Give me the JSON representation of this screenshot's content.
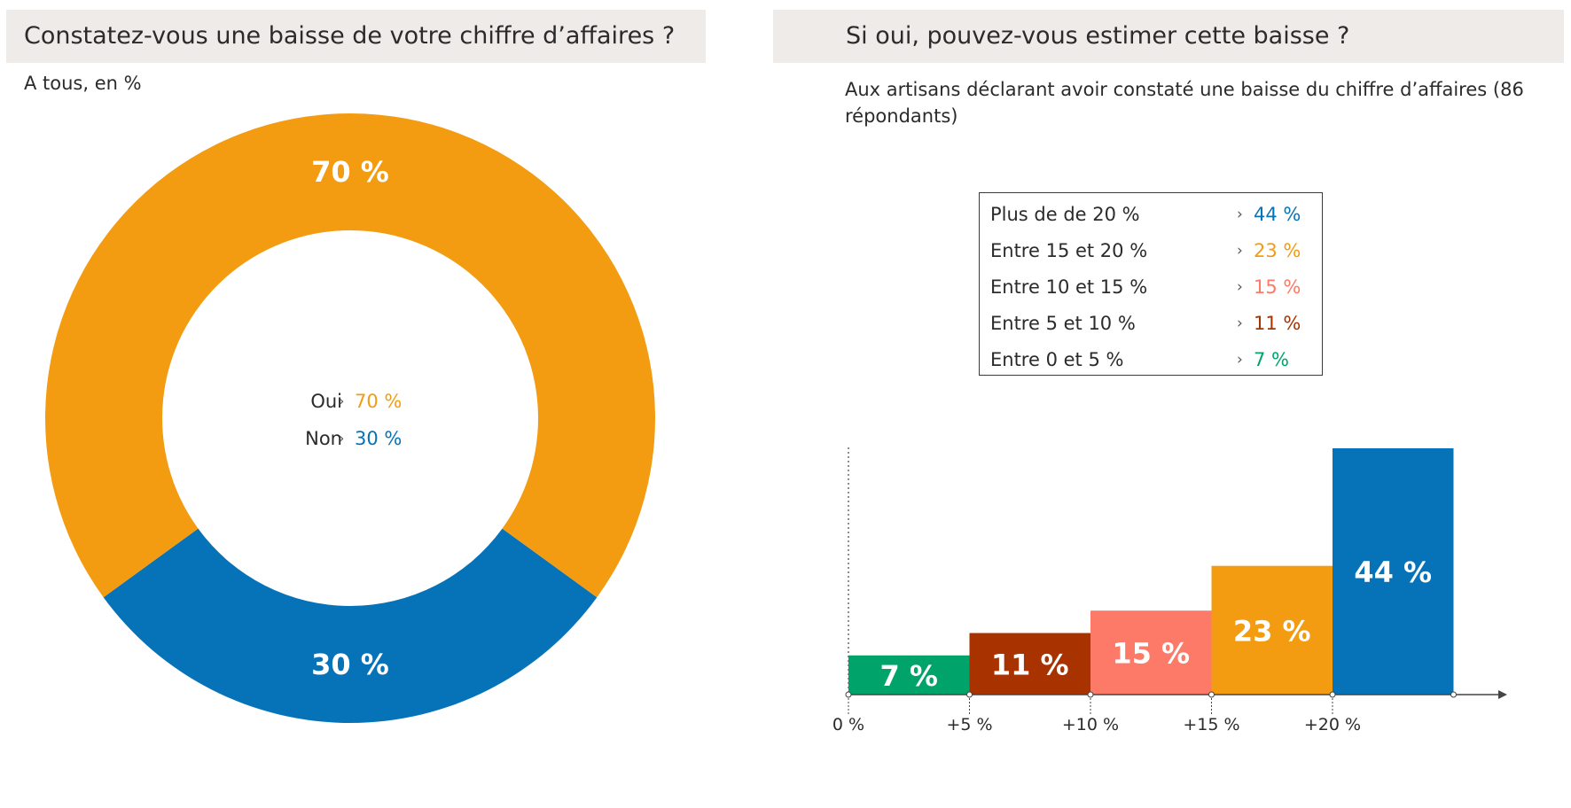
{
  "left_panel": {
    "title": "Constatez-vous une baisse de votre chiffre d’affaires ?",
    "subtitle": "A tous, en %",
    "legend": [
      {
        "label": "Oui",
        "arrow": "›",
        "value": "70 %",
        "color": "#f39c12"
      },
      {
        "label": "Non",
        "arrow": "›",
        "value": "30 %",
        "color": "#0673b8"
      }
    ]
  },
  "right_panel": {
    "title": "Si oui, pouvez-vous estimer cette baisse ?",
    "subtitle": "Aux artisans déclarant avoir constaté une baisse du chiffre d’affaires (86 répondants)",
    "legend": [
      {
        "label": "Plus de de 20 %",
        "arrow": "›",
        "value": "44 %",
        "color": "#0673b8"
      },
      {
        "label": "Entre 15 et 20 %",
        "arrow": "›",
        "value": "23 %",
        "color": "#f39c12"
      },
      {
        "label": "Entre 10 et 15 %",
        "arrow": "›",
        "value": "15 %",
        "color": "#fc7a67"
      },
      {
        "label": "Entre 5 et 10 %",
        "arrow": "›",
        "value": "11 %",
        "color": "#a83300"
      },
      {
        "label": "Entre 0 et 5 %",
        "arrow": "›",
        "value": "7 %",
        "color": "#00a36a"
      }
    ]
  },
  "chart_data": [
    {
      "type": "pie",
      "style": "donut",
      "categories": [
        "Oui",
        "Non"
      ],
      "values": [
        70,
        30
      ],
      "labels": [
        "70 %",
        "30 %"
      ],
      "colors": [
        "#f39c12",
        "#0673b8"
      ]
    },
    {
      "type": "bar",
      "categories": [
        "Entre 0 et 5 %",
        "Entre 5 et 10 %",
        "Entre 10 et 15 %",
        "Entre 15 et 20 %",
        "Plus de de 20 %"
      ],
      "values": [
        7,
        11,
        15,
        23,
        44
      ],
      "labels": [
        "7 %",
        "11 %",
        "15 %",
        "23 %",
        "44 %"
      ],
      "colors": [
        "#00a36a",
        "#a83300",
        "#fc7a67",
        "#f39c12",
        "#0673b8"
      ],
      "x_ticks": [
        "0 %",
        "+5 %",
        "+10 %",
        "+15 %",
        "+20 %"
      ],
      "ylim": [
        0,
        44
      ]
    }
  ]
}
